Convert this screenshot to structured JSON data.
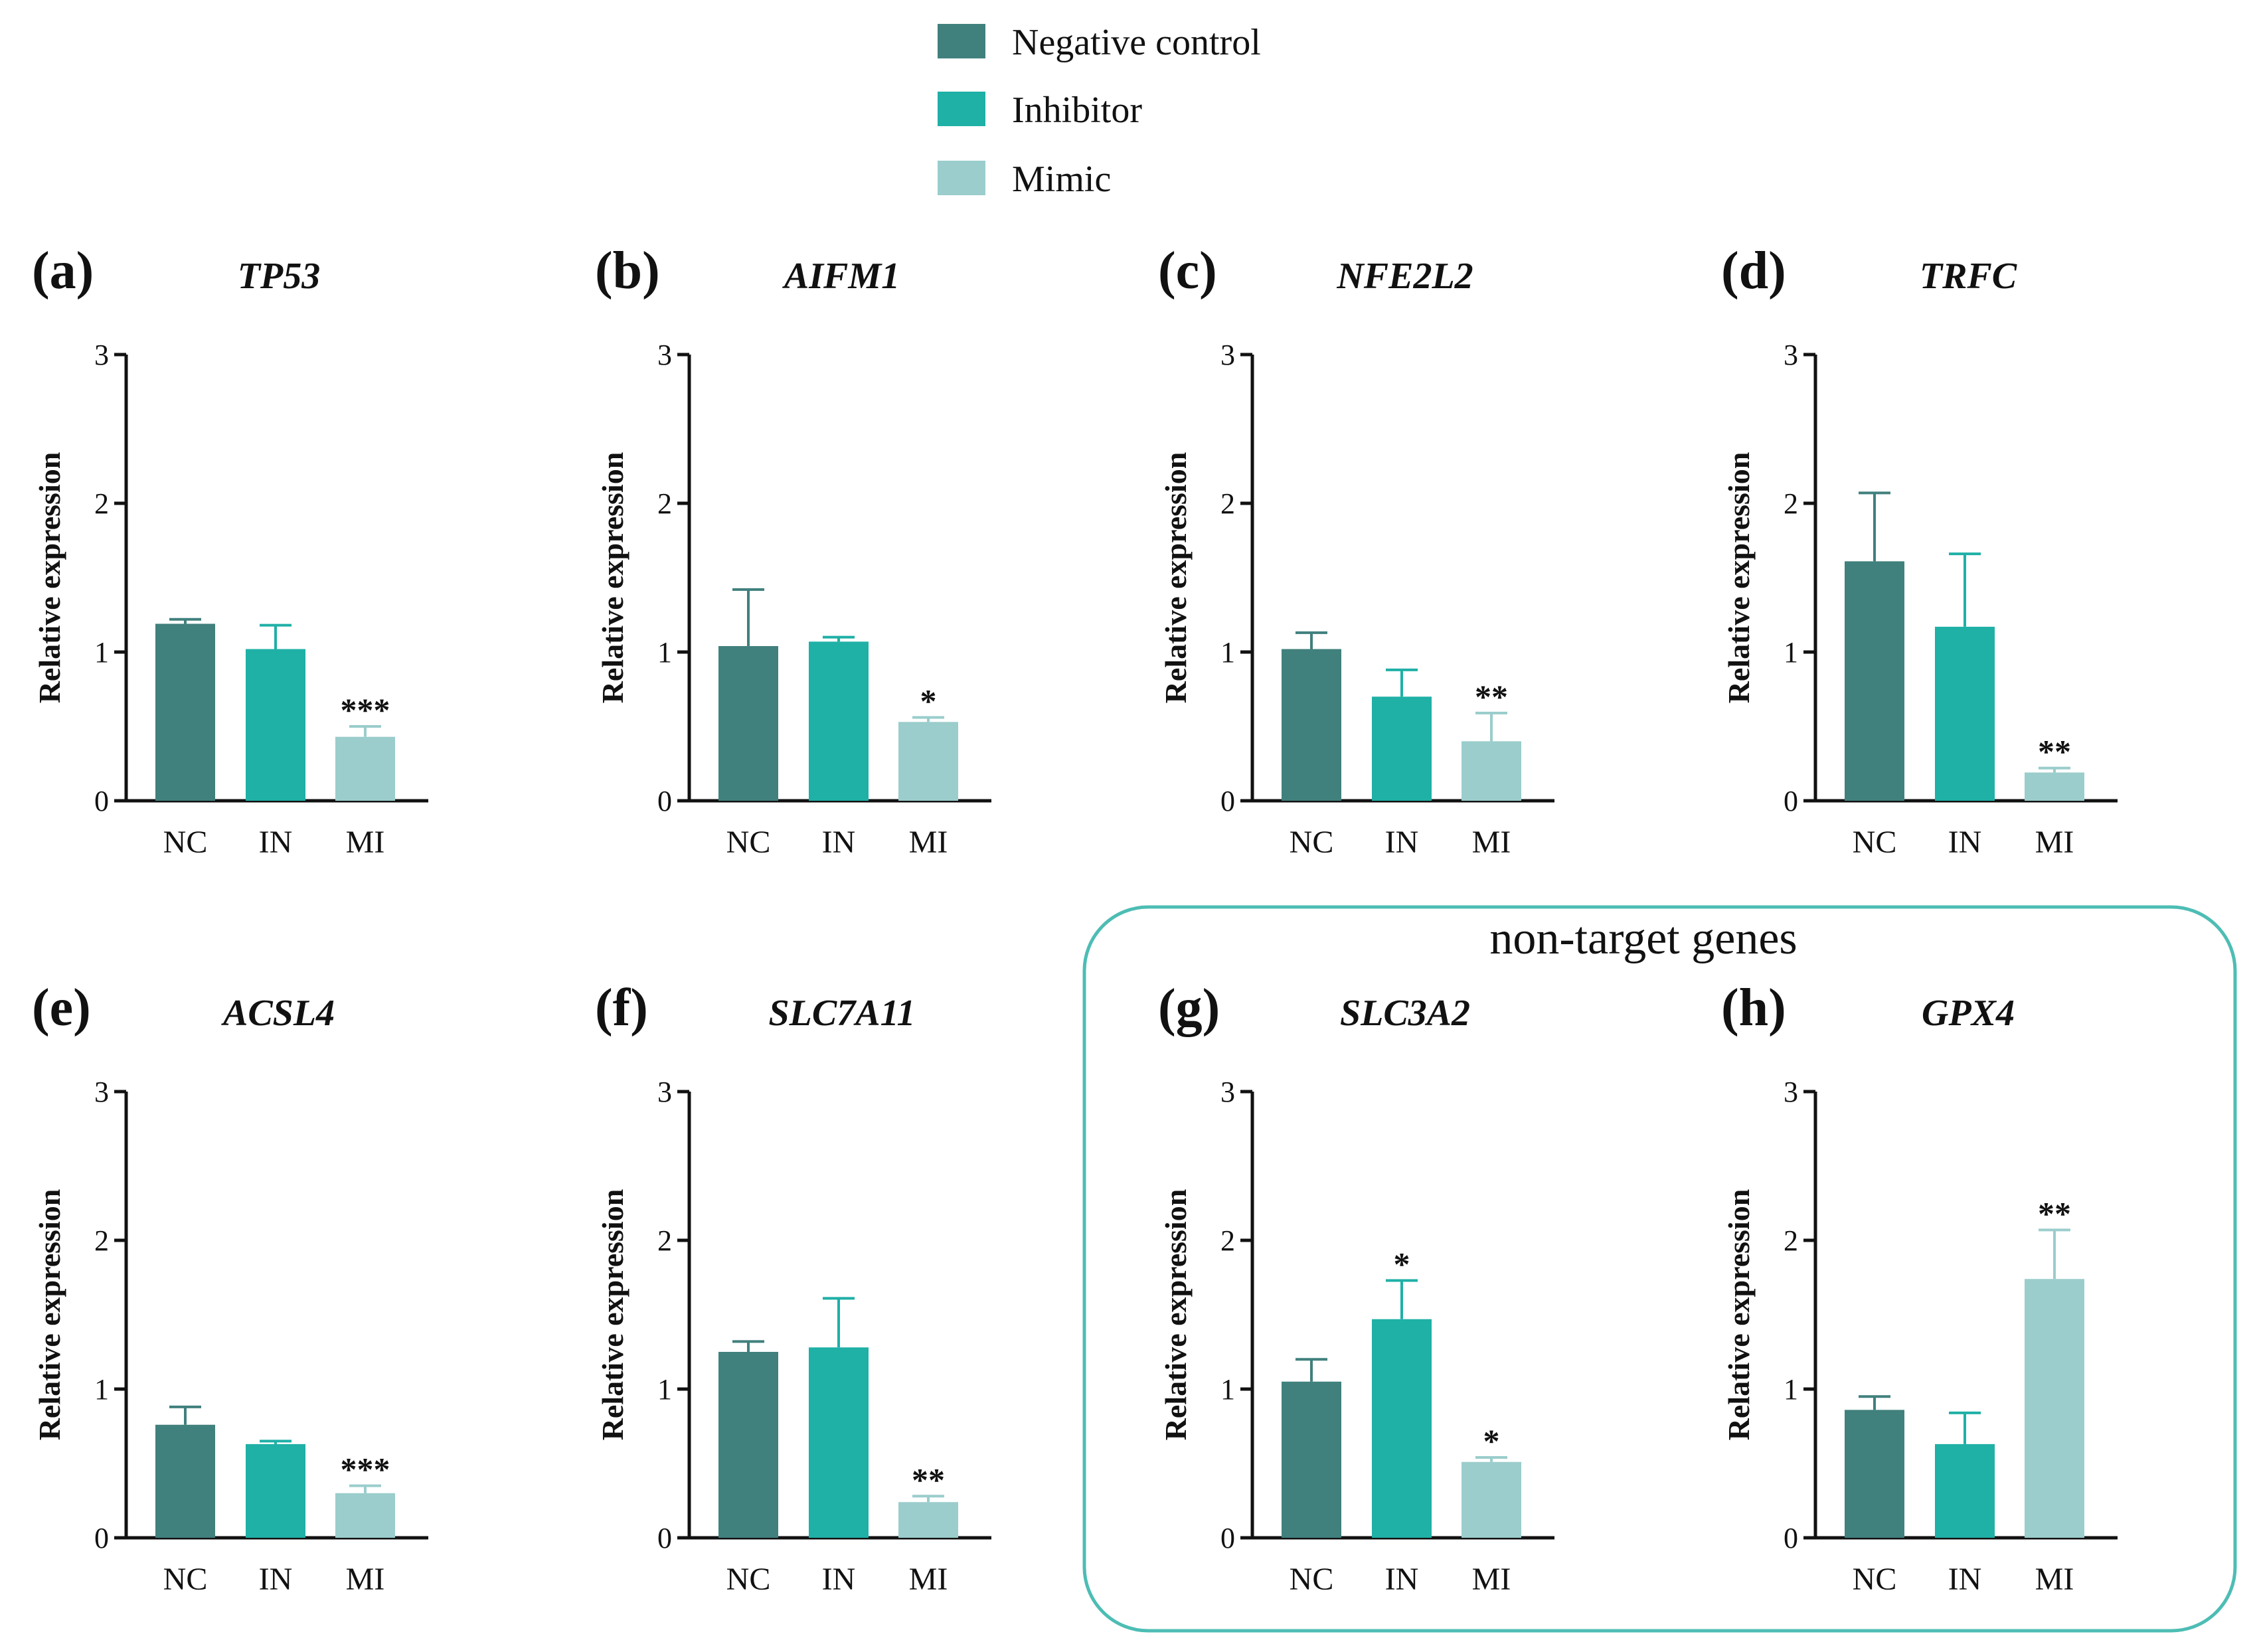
{
  "legend": [
    {
      "label": "Negative control",
      "color": "#40807D"
    },
    {
      "label": "Inhibitor",
      "color": "#1FB0A6"
    },
    {
      "label": "Mimic",
      "color": "#9ACDCC"
    }
  ],
  "region": {
    "label": "non-target genes",
    "border_color": "#4DBDB4"
  },
  "chart_data": [
    {
      "type": "bar",
      "panel": "(a)",
      "title": "TP53",
      "ylabel": "Relative expression",
      "ylim": [
        0,
        3
      ],
      "yticks": [
        "0",
        "1",
        "2",
        "3"
      ],
      "categories": [
        "NC",
        "IN",
        "MI"
      ],
      "values": [
        1.19,
        1.02,
        0.43
      ],
      "errors": [
        0.03,
        0.16,
        0.07
      ],
      "significance": [
        "",
        "",
        "***"
      ]
    },
    {
      "type": "bar",
      "panel": "(b)",
      "title": "AIFM1",
      "ylabel": "Relative expression",
      "ylim": [
        0,
        3
      ],
      "yticks": [
        "0",
        "1",
        "2",
        "3"
      ],
      "categories": [
        "NC",
        "IN",
        "MI"
      ],
      "values": [
        1.04,
        1.07,
        0.53
      ],
      "errors": [
        0.38,
        0.03,
        0.03
      ],
      "significance": [
        "",
        "",
        "*"
      ]
    },
    {
      "type": "bar",
      "panel": "(c)",
      "title": "NFE2L2",
      "ylabel": "Relative expression",
      "ylim": [
        0,
        3
      ],
      "yticks": [
        "0",
        "1",
        "2",
        "3"
      ],
      "categories": [
        "NC",
        "IN",
        "MI"
      ],
      "values": [
        1.02,
        0.7,
        0.4
      ],
      "errors": [
        0.11,
        0.18,
        0.19
      ],
      "significance": [
        "",
        "",
        "**"
      ]
    },
    {
      "type": "bar",
      "panel": "(d)",
      "title": "TRFC",
      "ylabel": "Relative expression",
      "ylim": [
        0,
        3
      ],
      "yticks": [
        "0",
        "1",
        "2",
        "3"
      ],
      "categories": [
        "NC",
        "IN",
        "MI"
      ],
      "values": [
        1.61,
        1.17,
        0.19
      ],
      "errors": [
        0.46,
        0.49,
        0.03
      ],
      "significance": [
        "",
        "",
        "**"
      ]
    },
    {
      "type": "bar",
      "panel": "(e)",
      "title": "ACSL4",
      "ylabel": "Relative expression",
      "ylim": [
        0,
        3
      ],
      "yticks": [
        "0",
        "1",
        "2",
        "3"
      ],
      "categories": [
        "NC",
        "IN",
        "MI"
      ],
      "values": [
        0.76,
        0.63,
        0.3
      ],
      "errors": [
        0.12,
        0.02,
        0.05
      ],
      "significance": [
        "",
        "",
        "***"
      ]
    },
    {
      "type": "bar",
      "panel": "(f)",
      "title": "SLC7A11",
      "ylabel": "Relative expression",
      "ylim": [
        0,
        3
      ],
      "yticks": [
        "0",
        "1",
        "2",
        "3"
      ],
      "categories": [
        "NC",
        "IN",
        "MI"
      ],
      "values": [
        1.25,
        1.28,
        0.24
      ],
      "errors": [
        0.07,
        0.33,
        0.04
      ],
      "significance": [
        "",
        "",
        "**"
      ]
    },
    {
      "type": "bar",
      "panel": "(g)",
      "title": "SLC3A2",
      "ylabel": "Relative expression",
      "ylim": [
        0,
        3
      ],
      "yticks": [
        "0",
        "1",
        "2",
        "3"
      ],
      "categories": [
        "NC",
        "IN",
        "MI"
      ],
      "values": [
        1.05,
        1.47,
        0.51
      ],
      "errors": [
        0.15,
        0.26,
        0.03
      ],
      "significance": [
        "",
        "*",
        "*"
      ]
    },
    {
      "type": "bar",
      "panel": "(h)",
      "title": "GPX4",
      "ylabel": "Relative expression",
      "ylim": [
        0,
        3
      ],
      "yticks": [
        "0",
        "1",
        "2",
        "3"
      ],
      "categories": [
        "NC",
        "IN",
        "MI"
      ],
      "values": [
        0.86,
        0.63,
        1.74
      ],
      "errors": [
        0.09,
        0.21,
        0.33
      ],
      "significance": [
        "",
        "",
        "**"
      ]
    }
  ]
}
